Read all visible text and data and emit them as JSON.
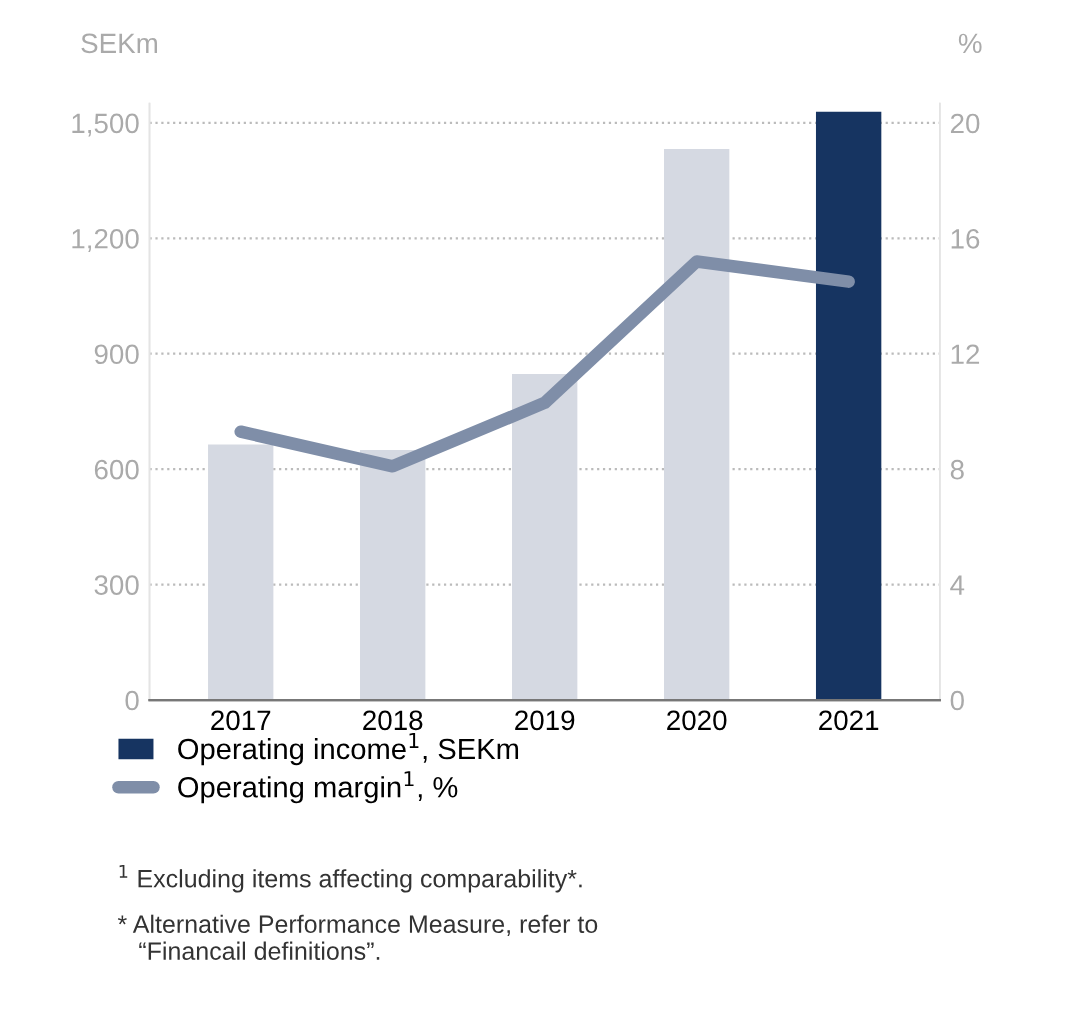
{
  "chart_data": {
    "type": "bar",
    "ylabel": "SEKm",
    "y2label": "%",
    "categories": [
      "2017",
      "2018",
      "2019",
      "2020",
      "2021"
    ],
    "series": [
      {
        "name": "Operating income$^{1}$, SEKm",
        "colors": [
          "#d5d9e2",
          "#d5d9e2",
          "#d5d9e2",
          "#d5d9e2",
          "#163461"
        ],
        "color": "#163461",
        "values": [
          664,
          650,
          847,
          1432,
          1529
        ]
      },
      {
        "name": "Operating margin$^{1}$, %",
        "type": "line",
        "axis": "y2",
        "color": "#7f8ea8",
        "values": [
          9.3,
          8.1,
          10.3,
          15.2,
          14.5
        ]
      }
    ],
    "ylim": [
      0,
      1550
    ],
    "yticks": [
      0,
      300,
      600,
      900,
      {
        "value": 1200,
        "label": "1,200"
      },
      {
        "value": 1500,
        "label": "1,500"
      }
    ],
    "y2lim": [
      0,
      20.67
    ],
    "y2ticks": [
      0,
      4,
      8,
      12,
      16,
      20
    ],
    "grid": "y",
    "legend": "bottom",
    "marker": "none",
    "line_style": "solid",
    "annotations": [
      "$^{1}$ Excluding items affecting comparability*.",
      "* Alternative Performance Measure, refer to\n   “Financail definitions”."
    ]
  }
}
